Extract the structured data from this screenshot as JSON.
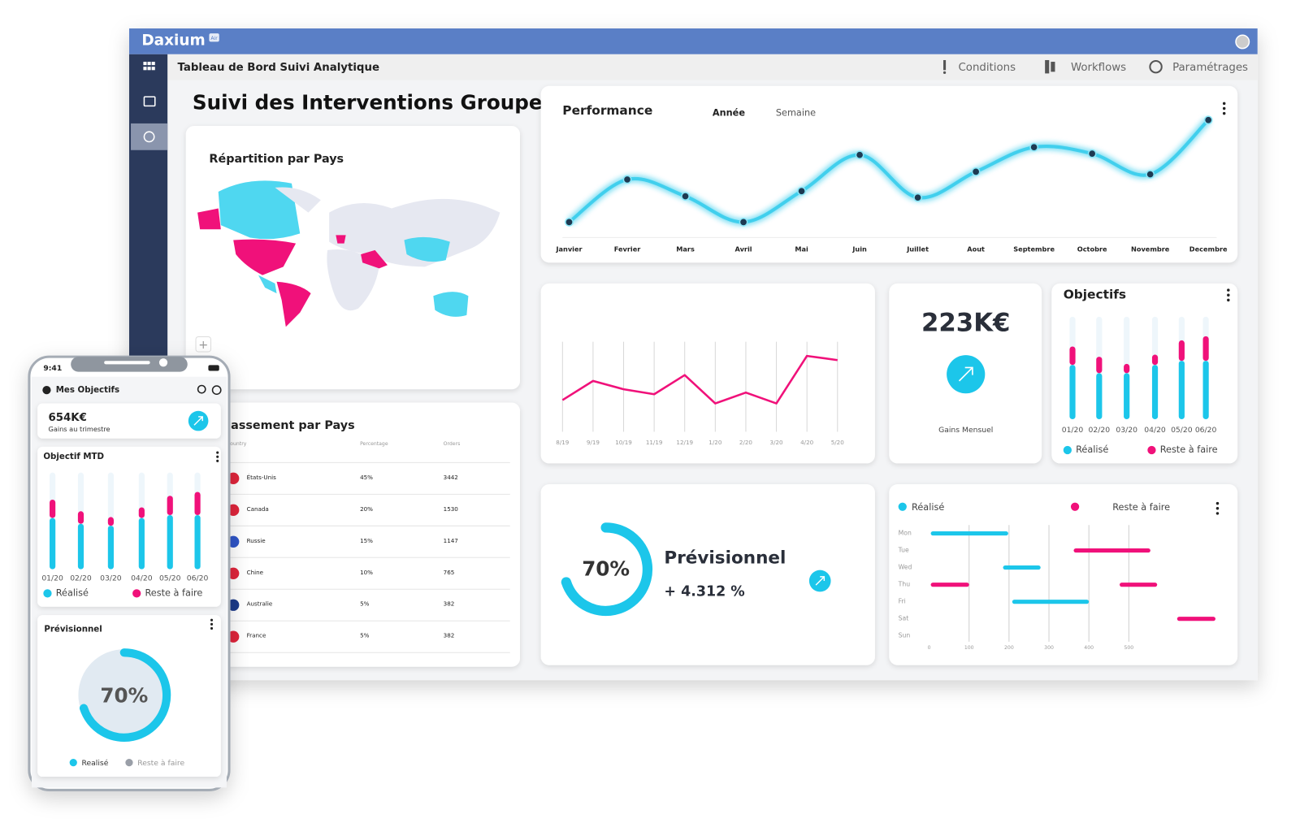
{
  "header": {
    "brand": "Daxium",
    "badge": "Air"
  },
  "toolbar": {
    "title": "Tableau de Bord Suivi Analytique",
    "actions": [
      "Conditions",
      "Workflows",
      "Paramétrages"
    ]
  },
  "page_title": "Suivi des Interventions Groupe",
  "map": {
    "title": "Répartition par Pays"
  },
  "ranking": {
    "title": "Classement par Pays",
    "columns": [
      "Country",
      "Percentage",
      "Orders"
    ],
    "rows": [
      [
        "États-Unis",
        "45%",
        "3442"
      ],
      [
        "Canada",
        "20%",
        "1530"
      ],
      [
        "Russie",
        "15%",
        "1147"
      ],
      [
        "Chine",
        "10%",
        "765"
      ],
      [
        "Australie",
        "5%",
        "382"
      ],
      [
        "France",
        "5%",
        "382"
      ]
    ]
  },
  "performance": {
    "title": "Performance",
    "tabs": [
      "Année",
      "Semaine"
    ],
    "categories": [
      "Janvier",
      "Fevrier",
      "Mars",
      "Avril",
      "Mai",
      "Juin",
      "Juillet",
      "Aout",
      "Septembre",
      "Octobre",
      "Novembre",
      "Decembre"
    ],
    "values": [
      12,
      45,
      32,
      12,
      36,
      64,
      31,
      51,
      70,
      65,
      49,
      91
    ],
    "ylim": [
      0,
      100
    ],
    "color": "#1cc6ea"
  },
  "trend": {
    "categories": [
      "8/19",
      "9/19",
      "10/19",
      "11/19",
      "12/19",
      "1/20",
      "2/20",
      "3/20",
      "4/20",
      "5/20"
    ],
    "values": [
      30,
      53,
      43,
      37,
      60,
      26,
      39,
      26,
      83,
      78
    ],
    "ylim": [
      0,
      100
    ],
    "color": "#f0117a"
  },
  "kpi": {
    "value": "223K€",
    "label": "Gains Mensuel"
  },
  "objectifs": {
    "title": "Objectifs",
    "categories": [
      "01/20",
      "02/20",
      "03/20",
      "04/20",
      "05/20",
      "06/20"
    ],
    "series": [
      {
        "name": "Réalisé",
        "color": "#1cc6ea",
        "values": [
          53,
          45,
          45,
          53,
          57,
          57
        ]
      },
      {
        "name": "Reste à faire",
        "color": "#f0117a",
        "values": [
          18,
          16,
          9,
          10,
          20,
          24
        ]
      }
    ],
    "ylim": [
      0,
      100
    ]
  },
  "forecast": {
    "value": 70,
    "value_label": "70%",
    "title": "Prévisionnel",
    "delta": "+ 4.312 %"
  },
  "gantt": {
    "legend": [
      {
        "name": "Réalisé",
        "color": "#1cc6ea"
      },
      {
        "name": "Reste à faire",
        "color": "#f0117a"
      }
    ],
    "xlim": [
      0,
      720
    ],
    "xticks": [
      0,
      100,
      200,
      300,
      400,
      500
    ],
    "rows": [
      {
        "label": "Mon",
        "bars": [
          {
            "start": 4,
            "end": 198,
            "color": "#1cc6ea"
          }
        ]
      },
      {
        "label": "Tue",
        "bars": [
          {
            "start": 362,
            "end": 554,
            "color": "#f0117a"
          }
        ]
      },
      {
        "label": "Wed",
        "bars": [
          {
            "start": 185,
            "end": 279,
            "color": "#1cc6ea"
          }
        ]
      },
      {
        "label": "Thu",
        "bars": [
          {
            "start": 4,
            "end": 100,
            "color": "#f0117a"
          },
          {
            "start": 477,
            "end": 571,
            "color": "#f0117a"
          }
        ]
      },
      {
        "label": "Fri",
        "bars": [
          {
            "start": 208,
            "end": 400,
            "color": "#1cc6ea"
          }
        ]
      },
      {
        "label": "Sat",
        "bars": [
          {
            "start": 621,
            "end": 717,
            "color": "#f0117a"
          }
        ]
      },
      {
        "label": "Sun",
        "bars": []
      }
    ]
  },
  "mobile": {
    "time": "9:41",
    "title": "Mes Objectifs",
    "kpi": {
      "value": "654K€",
      "label": "Gains au trimestre"
    },
    "mtd": {
      "title": "Objectif MTD",
      "categories": [
        "01/20",
        "02/20",
        "03/20",
        "04/20",
        "05/20",
        "06/20"
      ],
      "series": [
        {
          "name": "Réalisé",
          "color": "#1cc6ea",
          "values": [
            53,
            47,
            45,
            53,
            56,
            56
          ]
        },
        {
          "name": "Reste à faire",
          "color": "#f0117a",
          "values": [
            19,
            13,
            9,
            11,
            20,
            24
          ]
        }
      ],
      "ylim": [
        0,
        100
      ]
    },
    "forecast": {
      "title": "Prévisionnel",
      "value": 70,
      "value_label": "70%",
      "legend": [
        {
          "name": "Realisé",
          "color": "#1cc6ea"
        },
        {
          "name": "Reste à faire",
          "color": "#9a9fa8"
        }
      ]
    }
  }
}
